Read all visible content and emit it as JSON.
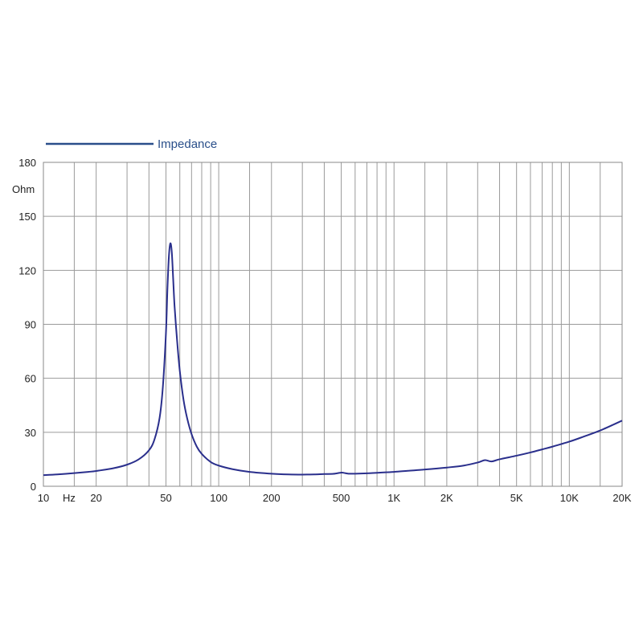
{
  "chart_data": {
    "type": "line",
    "legend": {
      "label": "Impedance",
      "placement": "top-left",
      "color": "#2a4f8a"
    },
    "ylabel": "Ohm",
    "xlabel": "Hz",
    "x_scale": "log",
    "xlim": [
      10,
      20000
    ],
    "ylim": [
      0,
      180
    ],
    "grid": true,
    "y_ticks": [
      {
        "value": 0,
        "label": "0"
      },
      {
        "value": 30,
        "label": "30"
      },
      {
        "value": 60,
        "label": "60"
      },
      {
        "value": 90,
        "label": "90"
      },
      {
        "value": 120,
        "label": "120"
      },
      {
        "value": 150,
        "label": "150"
      },
      {
        "value": 180,
        "label": "180"
      }
    ],
    "x_ticks": [
      {
        "value": 10,
        "label": "10"
      },
      {
        "value": 20,
        "label": "20"
      },
      {
        "value": 50,
        "label": "50"
      },
      {
        "value": 100,
        "label": "100"
      },
      {
        "value": 200,
        "label": "200"
      },
      {
        "value": 500,
        "label": "500"
      },
      {
        "value": 1000,
        "label": "1K"
      },
      {
        "value": 2000,
        "label": "2K"
      },
      {
        "value": 5000,
        "label": "5K"
      },
      {
        "value": 10000,
        "label": "10K"
      },
      {
        "value": 20000,
        "label": "20K"
      }
    ],
    "x_gridlines": [
      10,
      15,
      20,
      30,
      40,
      50,
      60,
      70,
      80,
      90,
      100,
      150,
      200,
      300,
      400,
      500,
      600,
      700,
      800,
      900,
      1000,
      1500,
      2000,
      3000,
      4000,
      5000,
      6000,
      7000,
      8000,
      9000,
      10000,
      15000,
      20000
    ],
    "series": [
      {
        "name": "Impedance",
        "color": "#2a2f8c",
        "x": [
          10,
          12,
          15,
          18,
          20,
          25,
          30,
          35,
          40,
          43,
          46,
          48,
          50,
          51,
          52,
          53,
          54,
          55,
          56,
          58,
          60,
          63,
          66,
          70,
          75,
          80,
          90,
          100,
          120,
          150,
          200,
          250,
          300,
          350,
          400,
          450,
          500,
          520,
          550,
          600,
          700,
          800,
          1000,
          1200,
          1500,
          2000,
          2500,
          3000,
          3300,
          3600,
          4000,
          5000,
          6000,
          7000,
          8000,
          10000,
          12000,
          15000,
          20000
        ],
        "y": [
          6.2,
          6.6,
          7.3,
          8.0,
          8.5,
          10.0,
          12.0,
          15.0,
          20.0,
          26.0,
          38.0,
          55.0,
          85.0,
          110.0,
          128.0,
          135.0,
          130.0,
          115.0,
          100.0,
          80.0,
          64.0,
          48.0,
          38.0,
          29.0,
          22.0,
          18.0,
          13.5,
          11.5,
          9.5,
          8.0,
          7.0,
          6.6,
          6.5,
          6.6,
          6.8,
          6.9,
          7.6,
          7.4,
          7.0,
          7.0,
          7.2,
          7.5,
          8.0,
          8.6,
          9.3,
          10.4,
          11.5,
          13.2,
          14.5,
          13.8,
          15.0,
          17.0,
          18.8,
          20.5,
          22.0,
          24.8,
          27.5,
          31.0,
          36.5
        ]
      }
    ]
  }
}
